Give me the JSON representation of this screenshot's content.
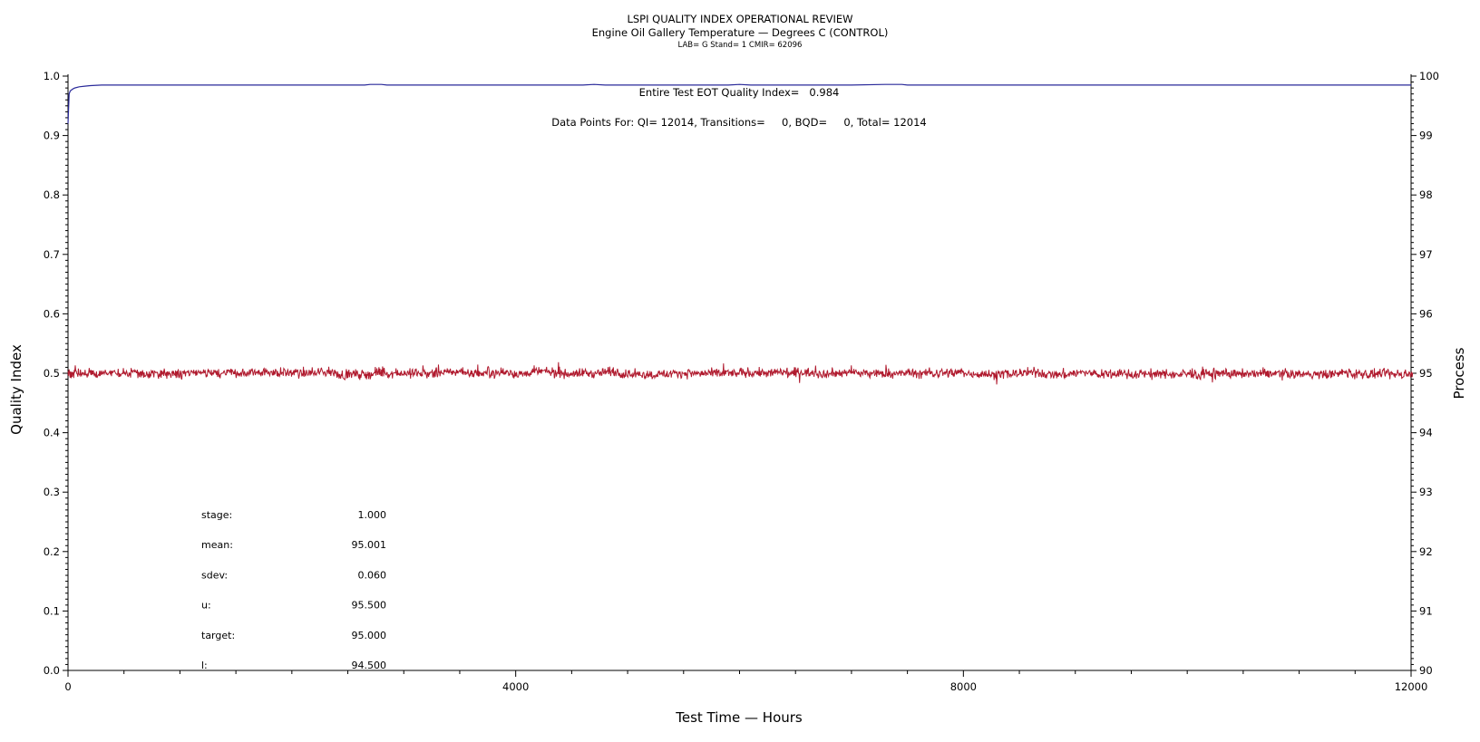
{
  "chart_data": {
    "type": "line",
    "title": "LSPI QUALITY INDEX OPERATIONAL REVIEW",
    "subtitle": "Engine Oil Gallery Temperature — Degrees C (CONTROL)",
    "subtitle2": "LAB= G Stand= 1 CMIR= 62096",
    "xlabel": "Test Time — Hours",
    "ylabel": "Quality Index",
    "y2label": "Process",
    "xlim": [
      0,
      12000
    ],
    "ylim": [
      0.0,
      1.0
    ],
    "y2lim": [
      90,
      100
    ],
    "x_ticks": [
      "0",
      "4000",
      "8000",
      "12000"
    ],
    "y_ticks": [
      "0.0",
      "0.1",
      "0.2",
      "0.3",
      "0.4",
      "0.5",
      "0.6",
      "0.7",
      "0.8",
      "0.9",
      "1.0"
    ],
    "y2_ticks": [
      "90",
      "91",
      "92",
      "93",
      "94",
      "95",
      "96",
      "97",
      "98",
      "99",
      "100"
    ],
    "annotations": {
      "qi": "Entire Test EOT Quality Index=   0.984",
      "points": "Data Points For: QI= 12014, Transitions=     0, BQD=     0, Total= 12014"
    },
    "stats": [
      {
        "label": "stage:",
        "value": "1.000"
      },
      {
        "label": "mean:",
        "value": "95.001"
      },
      {
        "label": "sdev:",
        "value": "0.060"
      },
      {
        "label": "u:",
        "value": "95.500"
      },
      {
        "label": "target:",
        "value": "95.000"
      },
      {
        "label": "l:",
        "value": "94.500"
      }
    ],
    "series": [
      {
        "axis": "left",
        "color": "#2a2a9a",
        "x": [
          0,
          10,
          20,
          40,
          60,
          100,
          150,
          200,
          300,
          500,
          1000,
          2000,
          2650,
          2700,
          2800,
          2850,
          3000,
          4000,
          4600,
          4700,
          4800,
          5000,
          5900,
          6000,
          6100,
          7000,
          7300,
          7450,
          7500,
          7600,
          7700,
          7800,
          8000,
          10000,
          12000
        ],
        "values": [
          0.92,
          0.97,
          0.975,
          0.978,
          0.98,
          0.982,
          0.983,
          0.984,
          0.985,
          0.985,
          0.985,
          0.985,
          0.985,
          0.986,
          0.986,
          0.985,
          0.985,
          0.985,
          0.985,
          0.986,
          0.985,
          0.985,
          0.985,
          0.986,
          0.985,
          0.985,
          0.986,
          0.986,
          0.985,
          0.985,
          0.985,
          0.985,
          0.985,
          0.985,
          0.985
        ]
      },
      {
        "axis": "right",
        "color": "#b01a2e",
        "x_start": 0,
        "x_end": 12014,
        "count": 12014,
        "mean": 95.001,
        "sdev": 0.06,
        "min": 94.78,
        "max": 95.25
      }
    ]
  }
}
